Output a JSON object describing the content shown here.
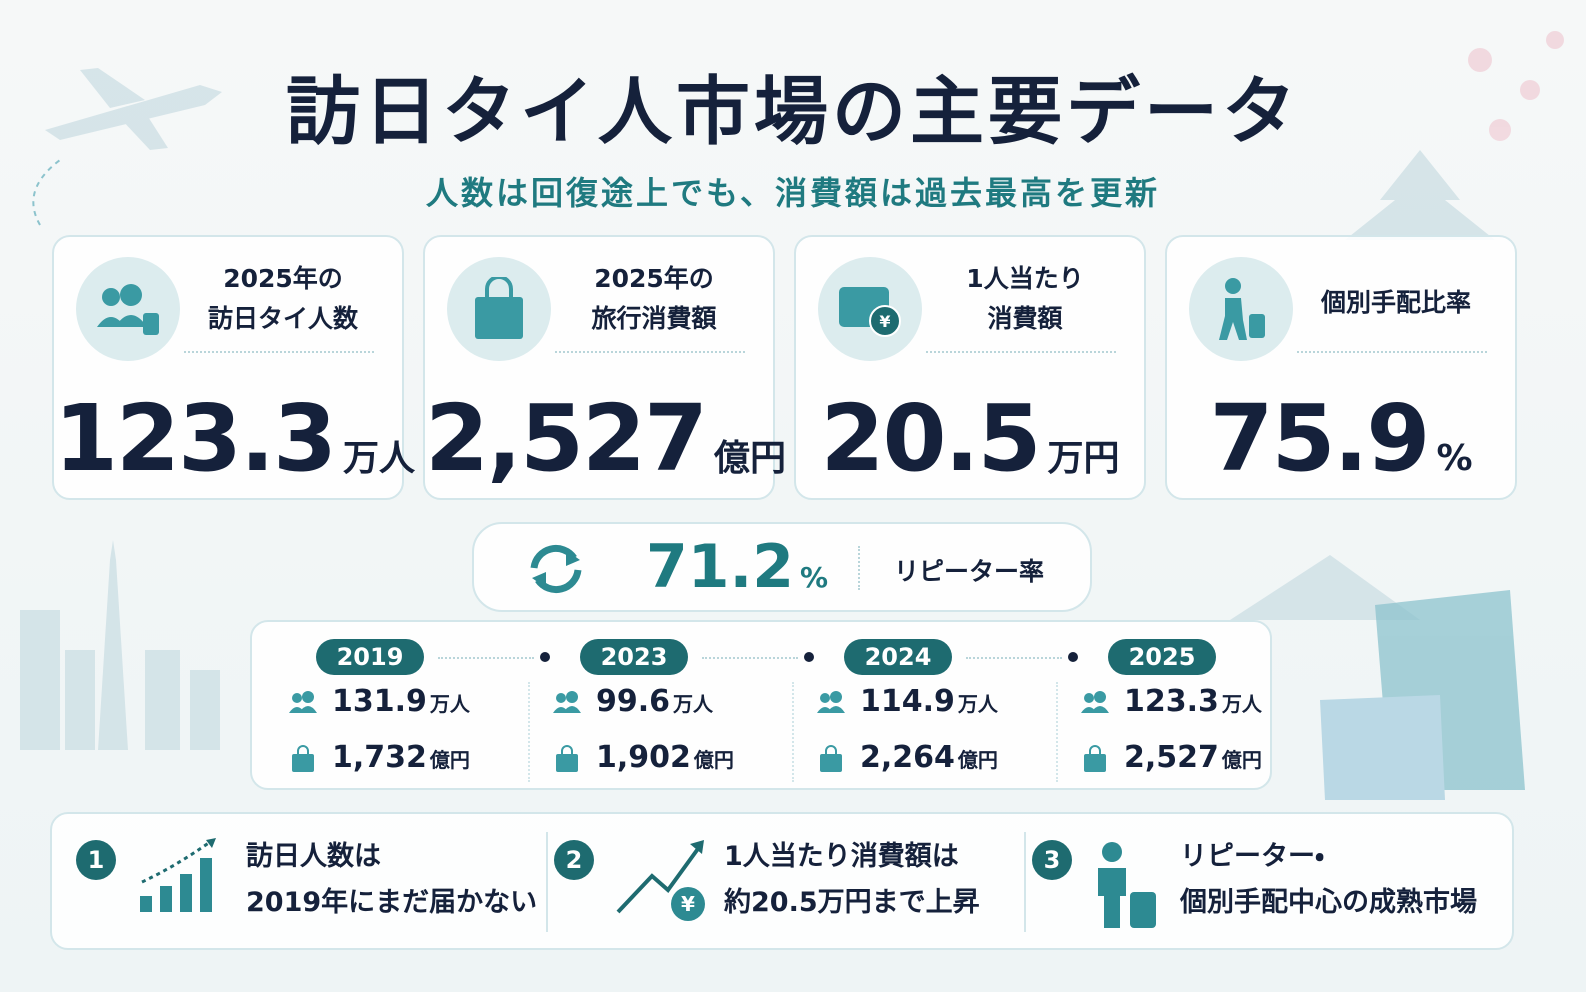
{
  "header": {
    "title": "訪日タイ人市場の主要データ",
    "subtitle": "人数は回復途上でも、消費額は過去最高を更新"
  },
  "cards": [
    {
      "label_lines": [
        "2025年の",
        "訪日タイ人数"
      ],
      "value": "123.3",
      "unit": "万人"
    },
    {
      "label_lines": [
        "2025年の",
        "旅行消費額"
      ],
      "value": "2,527",
      "unit": "億円"
    },
    {
      "label_lines": [
        "1人当たり",
        "消費額"
      ],
      "value": "20.5",
      "unit": "万円"
    },
    {
      "label_lines": [
        "個別手配比率"
      ],
      "value": "75.9",
      "unit": "%"
    }
  ],
  "repeater": {
    "value": "71.2",
    "unit": "%",
    "label": "リピーター率"
  },
  "timeline": [
    {
      "year": "2019",
      "visitors": "131.9",
      "visitors_unit": "万人",
      "spending": "1,732",
      "spending_unit": "億円"
    },
    {
      "year": "2023",
      "visitors": "99.6",
      "visitors_unit": "万人",
      "spending": "1,902",
      "spending_unit": "億円"
    },
    {
      "year": "2024",
      "visitors": "114.9",
      "visitors_unit": "万人",
      "spending": "2,264",
      "spending_unit": "億円"
    },
    {
      "year": "2025",
      "visitors": "123.3",
      "visitors_unit": "万人",
      "spending": "2,527",
      "spending_unit": "億円"
    }
  ],
  "points": [
    {
      "number": "1",
      "lines": [
        "訪日人数は",
        "2019年にまだ届かない"
      ]
    },
    {
      "number": "2",
      "lines": [
        "1人当たり消費額は",
        "約20.5万円まで上昇"
      ]
    },
    {
      "number": "3",
      "lines": [
        "リピーター・",
        "個別手配中心の成熟市場"
      ]
    }
  ]
}
